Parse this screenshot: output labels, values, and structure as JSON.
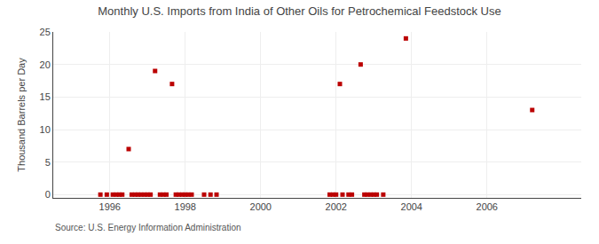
{
  "chart_data": {
    "type": "scatter",
    "title": "Monthly U.S. Imports from India of Other Oils for Petrochemical Feedstock Use",
    "ylabel": "Thousand Barrels per Day",
    "annotations": [
      "Source: U.S. Energy Information Administration"
    ],
    "x": [
      1996.5,
      1997.2,
      1997.65,
      2002.1,
      2002.65,
      2003.85,
      2007.2,
      1995.75,
      1995.92,
      1996.08,
      1996.17,
      1996.25,
      1996.33,
      1996.58,
      1996.67,
      1996.75,
      1996.83,
      1996.92,
      1997.0,
      1997.08,
      1997.33,
      1997.42,
      1997.5,
      1997.75,
      1997.83,
      1997.92,
      1998.0,
      1998.08,
      1998.17,
      1998.5,
      1998.67,
      1998.83,
      2001.83,
      2001.92,
      2002.0,
      2002.17,
      2002.33,
      2002.42,
      2002.75,
      2002.83,
      2002.92,
      2003.0,
      2003.08,
      2003.25
    ],
    "values": [
      7.0,
      19.0,
      17.0,
      17.0,
      20.0,
      24.0,
      13.0,
      0.0,
      0.0,
      0.0,
      0.0,
      0.0,
      0.0,
      0.0,
      0.0,
      0.0,
      0.0,
      0.0,
      0.0,
      0.0,
      0.0,
      0.0,
      0.0,
      0.0,
      0.0,
      0.0,
      0.0,
      0.0,
      0.0,
      0.0,
      0.0,
      0.0,
      0.0,
      0.0,
      0.0,
      0.0,
      0.0,
      0.0,
      0.0,
      0.0,
      0.0,
      0.0,
      0.0,
      0.0
    ],
    "color": "#bb0000",
    "marker": "square",
    "xlim": [
      1994.5,
      2008.5
    ],
    "xticks": [
      1996,
      1998,
      2000,
      2002,
      2004,
      2006
    ],
    "ylim": [
      -0.5,
      25
    ],
    "yticks": [
      0,
      5,
      10,
      15,
      20,
      25
    ],
    "grid": true
  }
}
